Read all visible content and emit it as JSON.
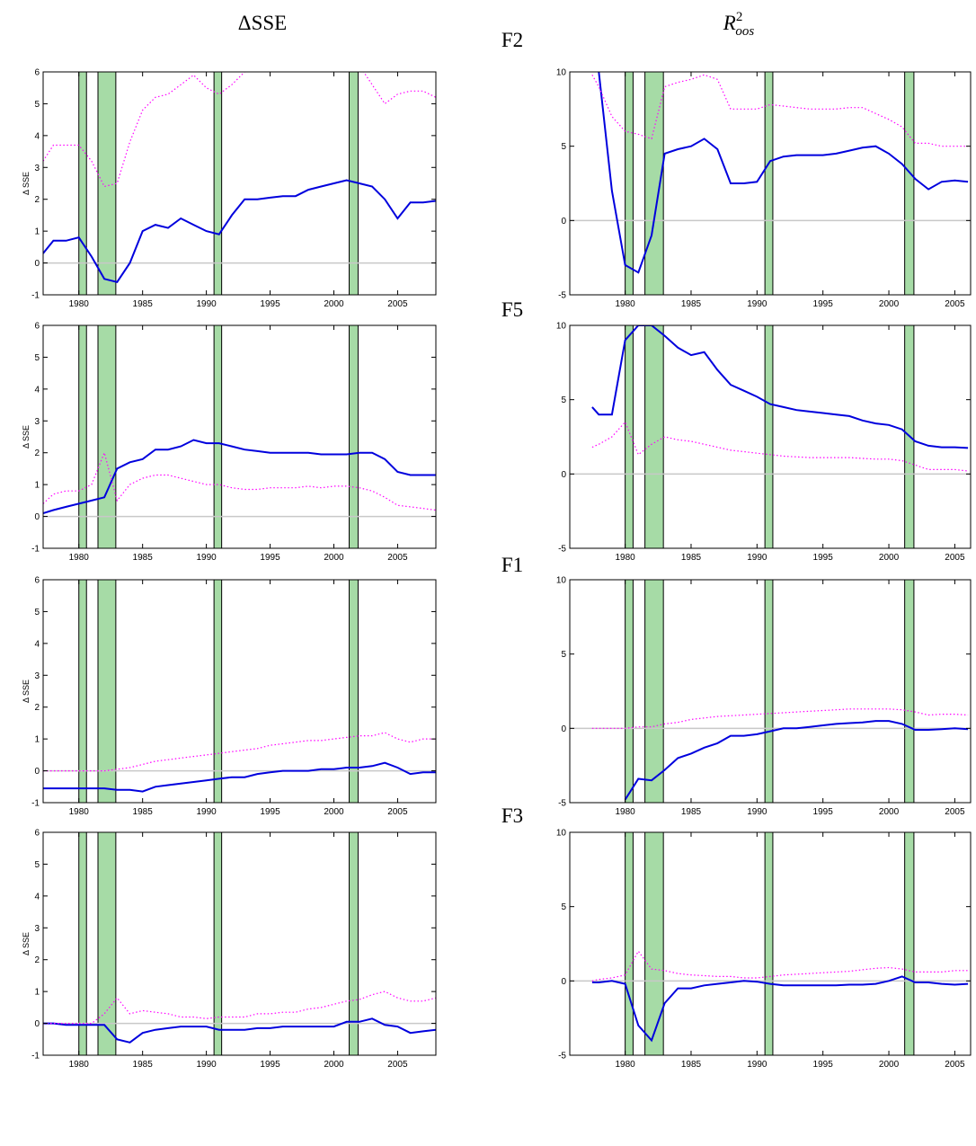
{
  "column_titles": [
    "ΔSSE",
    {
      "base": "R",
      "sup": "2",
      "sub": "oos"
    }
  ],
  "row_labels": [
    "F2",
    "F5",
    "F1",
    "F3"
  ],
  "recessions": [
    [
      1980.0,
      1980.6
    ],
    [
      1981.5,
      1982.9
    ],
    [
      1990.6,
      1991.2
    ],
    [
      2001.2,
      2001.9
    ]
  ],
  "recession_color": "#a6dba6",
  "chart_data": [
    {
      "type": "line",
      "ylabel": "Δ SSE",
      "xlim": [
        1977.2,
        2008
      ],
      "ylim": [
        -1,
        6
      ],
      "xticks": [
        1980,
        1985,
        1990,
        1995,
        2000,
        2005
      ],
      "yticks": [
        -1,
        0,
        1,
        2,
        3,
        4,
        5,
        6
      ],
      "hline": 0,
      "x": [
        1977.2,
        1978,
        1979,
        1980,
        1981,
        1982,
        1983,
        1984,
        1985,
        1986,
        1987,
        1988,
        1989,
        1990,
        1991,
        1992,
        1993,
        1994,
        1995,
        1996,
        1997,
        1998,
        1999,
        2000,
        2001,
        2002,
        2003,
        2004,
        2005,
        2006,
        2007,
        2008
      ],
      "series": [
        {
          "color": "#0000dd",
          "dash": "solid",
          "values": [
            0.3,
            0.7,
            0.7,
            0.8,
            0.2,
            -0.5,
            -0.6,
            0.0,
            1.0,
            1.2,
            1.1,
            1.4,
            1.2,
            1.0,
            0.9,
            1.5,
            2.0,
            2.0,
            2.05,
            2.1,
            2.1,
            2.3,
            2.4,
            2.5,
            2.6,
            2.5,
            2.4,
            2.0,
            1.4,
            1.9,
            1.9,
            1.95
          ]
        },
        {
          "color": "#ff00ff",
          "dash": "dotted",
          "values": [
            3.2,
            3.7,
            3.7,
            3.7,
            3.2,
            2.4,
            2.5,
            3.8,
            4.8,
            5.2,
            5.3,
            5.6,
            5.9,
            5.5,
            5.3,
            5.6,
            6.0,
            6.2,
            6.4,
            6.4,
            6.4,
            6.4,
            6.4,
            6.4,
            6.3,
            6.2,
            5.6,
            5.0,
            5.3,
            5.4,
            5.4,
            5.2
          ]
        }
      ]
    },
    {
      "type": "line",
      "xlim": [
        1975.8,
        2006.2
      ],
      "ylim": [
        -5,
        10
      ],
      "xticks": [
        1980,
        1985,
        1990,
        1995,
        2000,
        2005
      ],
      "yticks": [
        -5,
        0,
        5,
        10
      ],
      "hline": 0,
      "x": [
        1977.5,
        1978,
        1979,
        1980,
        1981,
        1982,
        1983,
        1984,
        1985,
        1986,
        1987,
        1988,
        1989,
        1990,
        1991,
        1992,
        1993,
        1994,
        1995,
        1996,
        1997,
        1998,
        1999,
        2000,
        2001,
        2002,
        2003,
        2004,
        2005,
        2006
      ],
      "series": [
        {
          "color": "#0000dd",
          "dash": "solid",
          "values": [
            null,
            10,
            2,
            -3,
            -3.5,
            -1,
            4.5,
            4.8,
            5,
            5.5,
            4.8,
            2.5,
            2.5,
            2.6,
            4,
            4.3,
            4.4,
            4.4,
            4.4,
            4.5,
            4.7,
            4.9,
            5,
            4.5,
            3.8,
            2.8,
            2.1,
            2.6,
            2.7,
            2.6
          ]
        },
        {
          "color": "#ff00ff",
          "dash": "dotted",
          "values": [
            9.8,
            9,
            7,
            6,
            5.8,
            5.5,
            9,
            9.3,
            9.5,
            9.8,
            9.5,
            7.5,
            7.5,
            7.5,
            7.8,
            7.7,
            7.6,
            7.5,
            7.5,
            7.5,
            7.6,
            7.6,
            7.2,
            6.8,
            6.3,
            5.2,
            5.2,
            5,
            5,
            5
          ]
        }
      ]
    },
    {
      "type": "line",
      "ylabel": "Δ SSE",
      "xlim": [
        1977.2,
        2008
      ],
      "ylim": [
        -1,
        6
      ],
      "xticks": [
        1980,
        1985,
        1990,
        1995,
        2000,
        2005
      ],
      "yticks": [
        -1,
        0,
        1,
        2,
        3,
        4,
        5,
        6
      ],
      "hline": 0,
      "x": [
        1977.2,
        1978,
        1979,
        1980,
        1981,
        1982,
        1983,
        1984,
        1985,
        1986,
        1987,
        1988,
        1989,
        1990,
        1991,
        1992,
        1993,
        1994,
        1995,
        1996,
        1997,
        1998,
        1999,
        2000,
        2001,
        2002,
        2003,
        2004,
        2005,
        2006,
        2007,
        2008
      ],
      "series": [
        {
          "color": "#0000dd",
          "dash": "solid",
          "values": [
            0.1,
            0.2,
            0.3,
            0.4,
            0.5,
            0.6,
            1.5,
            1.7,
            1.8,
            2.1,
            2.1,
            2.2,
            2.4,
            2.3,
            2.3,
            2.2,
            2.1,
            2.05,
            2.0,
            2.0,
            2.0,
            2.0,
            1.95,
            1.95,
            1.95,
            2.0,
            2.0,
            1.8,
            1.4,
            1.3,
            1.3,
            1.3
          ]
        },
        {
          "color": "#ff00ff",
          "dash": "dotted",
          "values": [
            0.4,
            0.7,
            0.8,
            0.8,
            1.0,
            2.0,
            0.5,
            1.0,
            1.2,
            1.3,
            1.3,
            1.2,
            1.1,
            1.0,
            1.0,
            0.9,
            0.85,
            0.85,
            0.9,
            0.9,
            0.9,
            0.95,
            0.9,
            0.95,
            0.95,
            0.9,
            0.8,
            0.6,
            0.35,
            0.3,
            0.25,
            0.2
          ]
        }
      ]
    },
    {
      "type": "line",
      "xlim": [
        1975.8,
        2006.2
      ],
      "ylim": [
        -5,
        10
      ],
      "xticks": [
        1980,
        1985,
        1990,
        1995,
        2000,
        2005
      ],
      "yticks": [
        -5,
        0,
        5,
        10
      ],
      "hline": 0,
      "x": [
        1977.5,
        1978,
        1979,
        1980,
        1981,
        1982,
        1983,
        1984,
        1985,
        1986,
        1987,
        1988,
        1989,
        1990,
        1991,
        1992,
        1993,
        1994,
        1995,
        1996,
        1997,
        1998,
        1999,
        2000,
        2001,
        2002,
        2003,
        2004,
        2005,
        2006
      ],
      "series": [
        {
          "color": "#0000dd",
          "dash": "solid",
          "values": [
            4.5,
            4,
            4,
            9,
            10,
            10,
            9.3,
            8.5,
            8,
            8.2,
            7,
            6,
            5.6,
            5.2,
            4.7,
            4.5,
            4.3,
            4.2,
            4.1,
            4,
            3.9,
            3.6,
            3.4,
            3.3,
            3.0,
            2.2,
            1.9,
            1.8,
            1.8,
            1.75
          ]
        },
        {
          "color": "#ff00ff",
          "dash": "dotted",
          "values": [
            1.8,
            2.0,
            2.5,
            3.5,
            1.3,
            2.0,
            2.5,
            2.3,
            2.2,
            2.0,
            1.8,
            1.6,
            1.5,
            1.4,
            1.3,
            1.2,
            1.15,
            1.1,
            1.1,
            1.1,
            1.1,
            1.05,
            1.0,
            1.0,
            0.9,
            0.6,
            0.3,
            0.3,
            0.3,
            0.2
          ]
        }
      ]
    },
    {
      "type": "line",
      "ylabel": "Δ SSE",
      "xlim": [
        1977.2,
        2008
      ],
      "ylim": [
        -1,
        6
      ],
      "xticks": [
        1980,
        1985,
        1990,
        1995,
        2000,
        2005
      ],
      "yticks": [
        -1,
        0,
        1,
        2,
        3,
        4,
        5,
        6
      ],
      "hline": 0,
      "x": [
        1977.2,
        1978,
        1979,
        1980,
        1981,
        1982,
        1983,
        1984,
        1985,
        1986,
        1987,
        1988,
        1989,
        1990,
        1991,
        1992,
        1993,
        1994,
        1995,
        1996,
        1997,
        1998,
        1999,
        2000,
        2001,
        2002,
        2003,
        2004,
        2005,
        2006,
        2007,
        2008
      ],
      "series": [
        {
          "color": "#0000dd",
          "dash": "solid",
          "values": [
            -0.55,
            -0.55,
            -0.55,
            -0.55,
            -0.55,
            -0.55,
            -0.6,
            -0.6,
            -0.65,
            -0.5,
            -0.45,
            -0.4,
            -0.35,
            -0.3,
            -0.25,
            -0.2,
            -0.2,
            -0.1,
            -0.05,
            0,
            0,
            0,
            0.05,
            0.05,
            0.1,
            0.1,
            0.15,
            0.25,
            0.1,
            -0.1,
            -0.05,
            -0.05
          ]
        },
        {
          "color": "#ff00ff",
          "dash": "dotted",
          "values": [
            0,
            0,
            0,
            0,
            0,
            0,
            0.05,
            0.1,
            0.2,
            0.3,
            0.35,
            0.4,
            0.45,
            0.5,
            0.55,
            0.6,
            0.65,
            0.7,
            0.8,
            0.85,
            0.9,
            0.95,
            0.95,
            1.0,
            1.05,
            1.1,
            1.1,
            1.2,
            1.0,
            0.9,
            1.0,
            1.0
          ]
        }
      ]
    },
    {
      "type": "line",
      "xlim": [
        1975.8,
        2006.2
      ],
      "ylim": [
        -5,
        10
      ],
      "xticks": [
        1980,
        1985,
        1990,
        1995,
        2000,
        2005
      ],
      "yticks": [
        -5,
        0,
        5,
        10
      ],
      "hline": 0,
      "x": [
        1977.5,
        1978,
        1979,
        1980,
        1981,
        1982,
        1983,
        1984,
        1985,
        1986,
        1987,
        1988,
        1989,
        1990,
        1991,
        1992,
        1993,
        1994,
        1995,
        1996,
        1997,
        1998,
        1999,
        2000,
        2001,
        2002,
        2003,
        2004,
        2005,
        2006
      ],
      "series": [
        {
          "color": "#0000dd",
          "dash": "solid",
          "values": [
            null,
            null,
            null,
            -4.8,
            -3.4,
            -3.5,
            -2.8,
            -2,
            -1.7,
            -1.3,
            -1,
            -0.5,
            -0.5,
            -0.4,
            -0.2,
            0,
            0,
            0.1,
            0.2,
            0.3,
            0.35,
            0.4,
            0.5,
            0.5,
            0.3,
            -0.1,
            -0.1,
            -0.05,
            0,
            -0.05
          ]
        },
        {
          "color": "#ff00ff",
          "dash": "dotted",
          "values": [
            0,
            0,
            0,
            0,
            0.1,
            0.1,
            0.3,
            0.4,
            0.6,
            0.7,
            0.8,
            0.85,
            0.9,
            0.95,
            1.0,
            1.05,
            1.1,
            1.15,
            1.2,
            1.25,
            1.3,
            1.3,
            1.3,
            1.3,
            1.25,
            1.1,
            0.9,
            0.95,
            0.95,
            0.9
          ]
        }
      ]
    },
    {
      "type": "line",
      "ylabel": "Δ SSE",
      "xlim": [
        1977.2,
        2008
      ],
      "ylim": [
        -1,
        6
      ],
      "xticks": [
        1980,
        1985,
        1990,
        1995,
        2000,
        2005
      ],
      "yticks": [
        -1,
        0,
        1,
        2,
        3,
        4,
        5,
        6
      ],
      "hline": 0,
      "x": [
        1977.2,
        1978,
        1979,
        1980,
        1981,
        1982,
        1983,
        1984,
        1985,
        1986,
        1987,
        1988,
        1989,
        1990,
        1991,
        1992,
        1993,
        1994,
        1995,
        1996,
        1997,
        1998,
        1999,
        2000,
        2001,
        2002,
        2003,
        2004,
        2005,
        2006,
        2007,
        2008
      ],
      "series": [
        {
          "color": "#0000dd",
          "dash": "solid",
          "values": [
            0,
            0,
            -0.05,
            -0.05,
            -0.05,
            -0.05,
            -0.5,
            -0.6,
            -0.3,
            -0.2,
            -0.15,
            -0.1,
            -0.1,
            -0.1,
            -0.2,
            -0.2,
            -0.2,
            -0.15,
            -0.15,
            -0.1,
            -0.1,
            -0.1,
            -0.1,
            -0.1,
            0.05,
            0.05,
            0.15,
            -0.05,
            -0.1,
            -0.3,
            -0.25,
            -0.2
          ]
        },
        {
          "color": "#ff00ff",
          "dash": "dotted",
          "values": [
            0,
            0,
            0,
            0,
            0,
            0.3,
            0.8,
            0.3,
            0.4,
            0.35,
            0.3,
            0.2,
            0.2,
            0.15,
            0.2,
            0.2,
            0.2,
            0.3,
            0.3,
            0.35,
            0.35,
            0.45,
            0.5,
            0.6,
            0.7,
            0.75,
            0.9,
            1.0,
            0.8,
            0.7,
            0.7,
            0.8
          ]
        }
      ]
    },
    {
      "type": "line",
      "xlim": [
        1975.8,
        2006.2
      ],
      "ylim": [
        -5,
        10
      ],
      "xticks": [
        1980,
        1985,
        1990,
        1995,
        2000,
        2005
      ],
      "yticks": [
        -5,
        0,
        5,
        10
      ],
      "hline": 0,
      "x": [
        1977.5,
        1978,
        1979,
        1980,
        1981,
        1982,
        1983,
        1984,
        1985,
        1986,
        1987,
        1988,
        1989,
        1990,
        1991,
        1992,
        1993,
        1994,
        1995,
        1996,
        1997,
        1998,
        1999,
        2000,
        2001,
        2002,
        2003,
        2004,
        2005,
        2006
      ],
      "series": [
        {
          "color": "#0000dd",
          "dash": "solid",
          "values": [
            -0.1,
            -0.1,
            0,
            -0.2,
            -3,
            -4,
            -1.5,
            -0.5,
            -0.5,
            -0.3,
            -0.2,
            -0.1,
            0,
            -0.05,
            -0.2,
            -0.3,
            -0.3,
            -0.3,
            -0.3,
            -0.3,
            -0.25,
            -0.25,
            -0.2,
            0,
            0.3,
            -0.1,
            -0.1,
            -0.2,
            -0.25,
            -0.2
          ]
        },
        {
          "color": "#ff00ff",
          "dash": "dotted",
          "values": [
            0,
            0.1,
            0.2,
            0.4,
            2.0,
            0.8,
            0.7,
            0.5,
            0.4,
            0.35,
            0.3,
            0.3,
            0.2,
            0.2,
            0.3,
            0.4,
            0.45,
            0.5,
            0.55,
            0.6,
            0.65,
            0.75,
            0.85,
            0.9,
            0.8,
            0.6,
            0.6,
            0.6,
            0.7,
            0.7
          ]
        }
      ]
    }
  ]
}
